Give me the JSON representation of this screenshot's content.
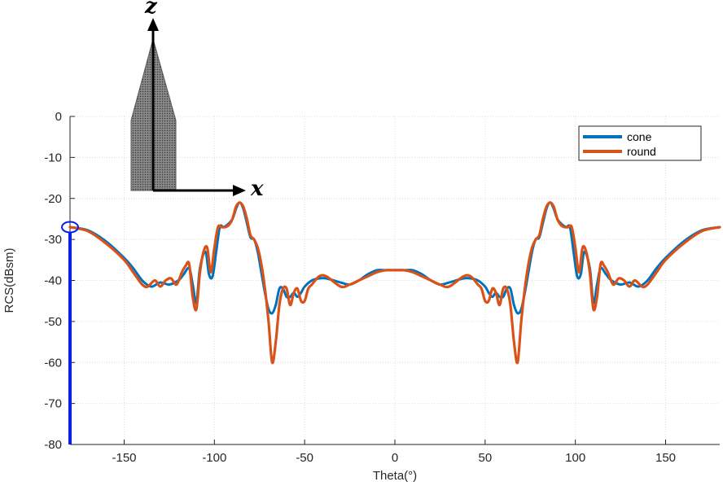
{
  "chart_data": {
    "type": "line",
    "title": "",
    "xlabel": "Theta(°)",
    "ylabel": "RCS(dBsm)",
    "xlim": [
      -180,
      180
    ],
    "ylim": [
      -80,
      0
    ],
    "xticks": [
      -150,
      -100,
      -50,
      0,
      50,
      100,
      150
    ],
    "yticks": [
      0,
      -10,
      -20,
      -30,
      -40,
      -50,
      -60,
      -70,
      -80
    ],
    "grid": true,
    "legend_position": "top-right",
    "series": [
      {
        "name": "cone",
        "color": "#0072bd",
        "x": [
          -180,
          -170,
          -160,
          -150,
          -145,
          -140,
          -135,
          -130,
          -125,
          -120,
          -117,
          -114,
          -112,
          -110,
          -108,
          -105,
          -103,
          -101,
          -99,
          -97,
          -95,
          -93,
          -90,
          -88,
          -86,
          -84,
          -82,
          -80,
          -78,
          -76,
          -74,
          -72,
          -70,
          -68,
          -66,
          -64,
          -62,
          -60,
          -58,
          -56,
          -54,
          -52,
          -50,
          -46,
          -42,
          -38,
          -30,
          -25,
          -20,
          -15,
          -10,
          -5,
          0,
          5,
          10,
          15,
          20,
          25,
          30,
          38,
          42,
          46,
          50,
          52,
          54,
          56,
          58,
          60,
          62,
          64,
          66,
          68,
          70,
          72,
          74,
          76,
          78,
          80,
          82,
          84,
          86,
          88,
          90,
          93,
          95,
          97,
          99,
          101,
          103,
          105,
          108,
          110,
          112,
          114,
          117,
          120,
          125,
          130,
          135,
          140,
          145,
          150,
          160,
          170,
          180
        ],
        "values": [
          -27,
          -27.8,
          -30.5,
          -34.5,
          -37,
          -40,
          -41.5,
          -40.5,
          -41,
          -40,
          -38.5,
          -37,
          -41,
          -45.5,
          -37,
          -33,
          -38.5,
          -39,
          -33,
          -27,
          -27,
          -26.5,
          -25,
          -22.5,
          -21,
          -22.5,
          -26,
          -29.5,
          -30,
          -33,
          -38,
          -43,
          -47,
          -48,
          -46,
          -42,
          -42,
          -44,
          -44,
          -43,
          -44,
          -43,
          -41.5,
          -40,
          -39.5,
          -39.5,
          -40.5,
          -41,
          -40,
          -38.5,
          -37.5,
          -37.5,
          -37.5,
          -37.5,
          -37.5,
          -38.5,
          -40,
          -41,
          -40.5,
          -39.5,
          -39.5,
          -40,
          -41.5,
          -43,
          -44,
          -43,
          -44,
          -44,
          -42,
          -42,
          -46,
          -48,
          -47,
          -43,
          -38,
          -33,
          -30,
          -29.5,
          -26,
          -22.5,
          -21,
          -22.5,
          -25,
          -26.5,
          -27,
          -27,
          -33,
          -39,
          -38.5,
          -33,
          -37,
          -45.5,
          -41,
          -37,
          -38.5,
          -40,
          -41,
          -40.5,
          -41.5,
          -40,
          -37,
          -34.5,
          -30.5,
          -27.8,
          -27
        ]
      },
      {
        "name": "round",
        "color": "#d95319",
        "x": [
          -180,
          -170,
          -160,
          -150,
          -145,
          -140,
          -137,
          -133,
          -130,
          -127,
          -124,
          -121,
          -118,
          -116,
          -114,
          -112,
          -110,
          -108,
          -106,
          -104,
          -102,
          -100,
          -98,
          -96,
          -94,
          -92,
          -90,
          -88,
          -86,
          -84,
          -82,
          -80,
          -78,
          -76,
          -74,
          -72,
          -70,
          -68,
          -66,
          -64,
          -62,
          -60,
          -58,
          -56,
          -54,
          -52,
          -50,
          -48,
          -46,
          -42,
          -38,
          -30,
          -25,
          -20,
          -15,
          -10,
          -5,
          0,
          5,
          10,
          15,
          20,
          25,
          30,
          38,
          42,
          46,
          48,
          50,
          52,
          54,
          56,
          58,
          60,
          62,
          64,
          66,
          68,
          70,
          72,
          74,
          76,
          78,
          80,
          82,
          84,
          86,
          88,
          90,
          92,
          94,
          96,
          98,
          100,
          102,
          104,
          106,
          108,
          110,
          112,
          114,
          116,
          118,
          121,
          124,
          127,
          130,
          133,
          137,
          140,
          145,
          150,
          160,
          170,
          180
        ],
        "values": [
          -27,
          -28,
          -31,
          -35,
          -38,
          -41,
          -41.5,
          -40,
          -41.5,
          -40,
          -39.5,
          -41,
          -38,
          -36.5,
          -36,
          -44,
          -47,
          -38,
          -33,
          -32,
          -38,
          -32,
          -27,
          -27,
          -27,
          -26.5,
          -25,
          -22,
          -21,
          -22,
          -25,
          -29,
          -30,
          -32,
          -36,
          -42,
          -50,
          -60,
          -55,
          -46,
          -42,
          -42,
          -46,
          -43,
          -42,
          -45,
          -45,
          -42,
          -41,
          -39,
          -39,
          -41.5,
          -41,
          -40,
          -39,
          -38,
          -37.5,
          -37.5,
          -37.5,
          -38,
          -39,
          -40,
          -41,
          -41.5,
          -39,
          -39,
          -41,
          -42,
          -45,
          -45,
          -42,
          -43,
          -46,
          -42,
          -42,
          -46,
          -55,
          -60,
          -50,
          -42,
          -36,
          -32,
          -30,
          -29,
          -25,
          -22,
          -21,
          -22,
          -25,
          -26.5,
          -27,
          -27,
          -27,
          -32,
          -38,
          -32,
          -33,
          -38,
          -47,
          -44,
          -36,
          -36.5,
          -38,
          -41,
          -39.5,
          -40,
          -41.5,
          -40,
          -41.5,
          -41,
          -38,
          -35,
          -31,
          -28,
          -27
        ]
      }
    ]
  },
  "inset": {
    "z_label": "z",
    "x_label": "x"
  }
}
